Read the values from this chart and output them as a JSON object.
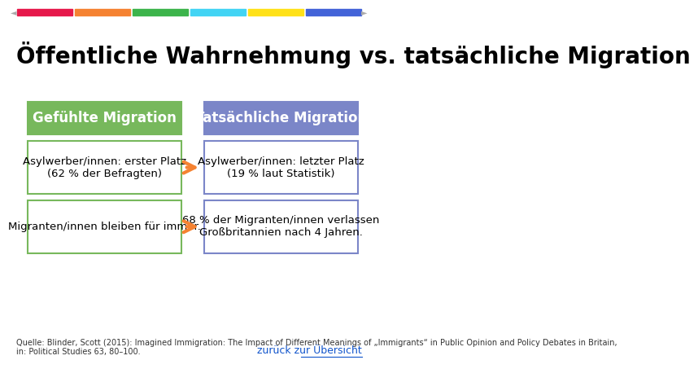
{
  "title": "Offentliche Wahrnehmung vs. tatsachliche Migration",
  "title_umlaut": "Öffentliche Wahrnehmung vs. tatsächliche Migration",
  "title_fontsize": 20,
  "background_color": "#ffffff",
  "top_bar_colors": [
    "#e6194b",
    "#f58231",
    "#3cb44b",
    "#42d4f4",
    "#ffe119",
    "#4363d8"
  ],
  "left_header_text": "Gefühlte Migration",
  "right_header_text": "Tatsächliche Migration",
  "left_header_bg": "#77b85c",
  "right_header_bg": "#7b86c8",
  "header_text_color": "#ffffff",
  "box_border_color_left": "#77b85c",
  "box_border_color_right": "#7b86c8",
  "rows": [
    {
      "left": "Asylwerber/innen: erster Platz\n(62 % der Befragten)",
      "right": "Asylwerber/innen: letzter Platz\n(19 % laut Statistik)"
    },
    {
      "left": "Migranten/innen bleiben für immer.",
      "right": "68 % der Migranten/innen verlassen\nGroßbritannien nach 4 Jahren."
    }
  ],
  "arrow_color": "#f58231",
  "source_text": "Quelle: Blinder, Scott (2015): Imagined Immigration: The Impact of Different Meanings of „Immigrants“ in Public Opinion and Policy Debates in Britain,\nin: Political Studies 63, 80–100.",
  "link_text": "zurück zur Übersicht",
  "source_fontsize": 7,
  "link_fontsize": 9
}
